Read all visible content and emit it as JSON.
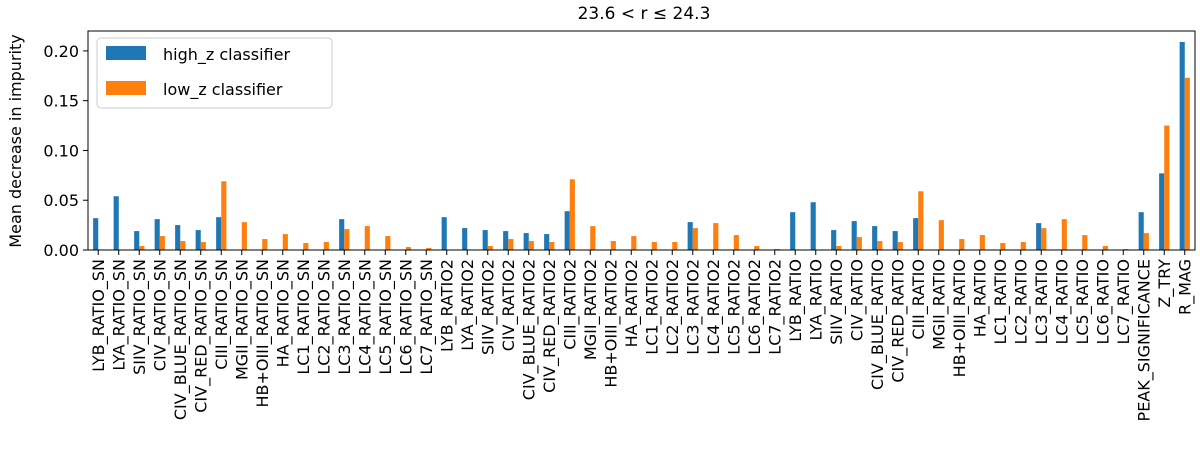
{
  "chart_data": {
    "type": "bar",
    "title": "23.6 < r ≤ 24.3",
    "xlabel": "",
    "ylabel": "Mean decrease in impurity",
    "ylim": [
      0,
      0.22
    ],
    "yticks": [
      "0.00",
      "0.05",
      "0.10",
      "0.15",
      "0.20"
    ],
    "ytick_values": [
      0,
      0.05,
      0.1,
      0.15,
      0.2
    ],
    "legend_position": "top-left",
    "grid": false,
    "categories": [
      "LYB_RATIO_SN",
      "LYA_RATIO_SN",
      "SIIV_RATIO_SN",
      "CIV_RATIO_SN",
      "CIV_BLUE_RATIO_SN",
      "CIV_RED_RATIO_SN",
      "CIII_RATIO_SN",
      "MGII_RATIO_SN",
      "HB+OIII_RATIO_SN",
      "HA_RATIO_SN",
      "LC1_RATIO_SN",
      "LC2_RATIO_SN",
      "LC3_RATIO_SN",
      "LC4_RATIO_SN",
      "LC5_RATIO_SN",
      "LC6_RATIO_SN",
      "LC7_RATIO_SN",
      "LYB_RATIO2",
      "LYA_RATIO2",
      "SIIV_RATIO2",
      "CIV_RATIO2",
      "CIV_BLUE_RATIO2",
      "CIV_RED_RATIO2",
      "CIII_RATIO2",
      "MGII_RATIO2",
      "HB+OIII_RATIO2",
      "HA_RATIO2",
      "LC1_RATIO2",
      "LC2_RATIO2",
      "LC3_RATIO2",
      "LC4_RATIO2",
      "LC5_RATIO2",
      "LC6_RATIO2",
      "LC7_RATIO2",
      "LYB_RATIO",
      "LYA_RATIO",
      "SIIV_RATIO",
      "CIV_RATIO",
      "CIV_BLUE_RATIO",
      "CIV_RED_RATIO",
      "CIII_RATIO",
      "MGII_RATIO",
      "HB+OIII_RATIO",
      "HA_RATIO",
      "LC1_RATIO",
      "LC2_RATIO",
      "LC3_RATIO",
      "LC4_RATIO",
      "LC5_RATIO",
      "LC6_RATIO",
      "LC7_RATIO",
      "PEAK_SIGNIFICANCE",
      "Z_TRY",
      "R_MAG"
    ],
    "series": [
      {
        "name": "high_z classifier",
        "color": "#1f77b4",
        "values": [
          0.032,
          0.054,
          0.019,
          0.031,
          0.025,
          0.02,
          0.033,
          0.0,
          0.0,
          0.0,
          0.0,
          0.0,
          0.031,
          0.0,
          0.0,
          0.0,
          0.0,
          0.033,
          0.022,
          0.02,
          0.019,
          0.017,
          0.016,
          0.039,
          0.0,
          0.0,
          0.0,
          0.0,
          0.0,
          0.028,
          0.0,
          0.0,
          0.0,
          0.0,
          0.038,
          0.048,
          0.02,
          0.029,
          0.024,
          0.019,
          0.032,
          0.0,
          0.0,
          0.0,
          0.0,
          0.0,
          0.027,
          0.0,
          0.0,
          0.0,
          0.0,
          0.038,
          0.077,
          0.209
        ]
      },
      {
        "name": "low_z classifier",
        "color": "#ff7f0e",
        "values": [
          0.0,
          0.0,
          0.004,
          0.014,
          0.009,
          0.008,
          0.069,
          0.028,
          0.011,
          0.016,
          0.007,
          0.008,
          0.021,
          0.024,
          0.014,
          0.003,
          0.002,
          0.0,
          0.0,
          0.004,
          0.011,
          0.009,
          0.008,
          0.071,
          0.024,
          0.009,
          0.014,
          0.008,
          0.008,
          0.022,
          0.027,
          0.015,
          0.004,
          0.001,
          0.0,
          0.0,
          0.004,
          0.013,
          0.009,
          0.008,
          0.059,
          0.03,
          0.011,
          0.015,
          0.007,
          0.008,
          0.022,
          0.031,
          0.015,
          0.004,
          0.001,
          0.017,
          0.125,
          0.173
        ]
      }
    ]
  }
}
